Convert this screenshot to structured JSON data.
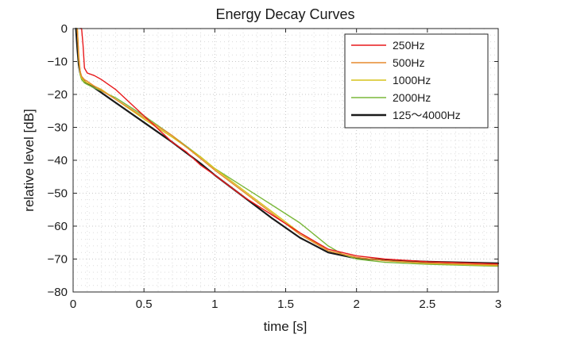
{
  "chart_data": {
    "type": "line",
    "title": "Energy Decay Curves",
    "xlabel": "time [s]",
    "ylabel": "relative level [dB]",
    "xlim": [
      0,
      3
    ],
    "ylim": [
      -80,
      0
    ],
    "xticks": [
      0,
      0.5,
      1,
      1.5,
      2,
      2.5,
      3
    ],
    "xtick_labels": [
      "0",
      "0.5",
      "1",
      "1.5",
      "2",
      "2.5",
      "3"
    ],
    "yticks": [
      0,
      -10,
      -20,
      -30,
      -40,
      -50,
      -60,
      -70,
      -80
    ],
    "ytick_labels": [
      "0",
      "−10",
      "−20",
      "−30",
      "−40",
      "−50",
      "−60",
      "−70",
      "−80"
    ],
    "grid": "major and minor dotted",
    "legend_position": "top-right",
    "series": [
      {
        "name": "250Hz",
        "color": "#e8191b",
        "x": [
          0.05,
          0.06,
          0.07,
          0.08,
          0.1,
          0.15,
          0.2,
          0.3,
          0.4,
          0.5,
          0.6,
          0.7,
          0.8,
          0.9,
          1.0,
          1.2,
          1.4,
          1.6,
          1.7,
          1.8,
          2.0,
          2.2,
          2.5,
          3.0
        ],
        "y": [
          0,
          0,
          -5,
          -12,
          -13.5,
          -14.3,
          -15.5,
          -18.5,
          -22.5,
          -26.5,
          -30.5,
          -34.5,
          -37.5,
          -41.5,
          -44.5,
          -51,
          -56.5,
          -62,
          -64.5,
          -67,
          -69,
          -70,
          -70.8,
          -71.5
        ]
      },
      {
        "name": "500Hz",
        "color": "#e68a2e",
        "x": [
          0.03,
          0.04,
          0.05,
          0.06,
          0.08,
          0.1,
          0.15,
          0.2,
          0.3,
          0.5,
          0.7,
          0.9,
          1.0,
          1.2,
          1.4,
          1.6,
          1.8,
          2.0,
          2.2,
          2.5,
          3.0
        ],
        "y": [
          0,
          -8,
          -13,
          -14.5,
          -15.5,
          -16,
          -17.5,
          -18.8,
          -21.5,
          -27,
          -32.5,
          -39.5,
          -43,
          -49.5,
          -56,
          -62.5,
          -67.5,
          -69.5,
          -70.5,
          -71.2,
          -71.8
        ]
      },
      {
        "name": "1000Hz",
        "color": "#d6c31c",
        "x": [
          0.03,
          0.04,
          0.05,
          0.06,
          0.08,
          0.1,
          0.15,
          0.2,
          0.3,
          0.5,
          0.7,
          0.9,
          1.0,
          1.2,
          1.4,
          1.6,
          1.8,
          2.0,
          2.2,
          2.5,
          3.0
        ],
        "y": [
          0,
          -9,
          -13.5,
          -15,
          -16,
          -16.5,
          -17.5,
          -18.5,
          -21.5,
          -27.5,
          -33,
          -39,
          -42.5,
          -49,
          -55.5,
          -62,
          -67.5,
          -69.5,
          -70.5,
          -71.3,
          -72
        ]
      },
      {
        "name": "2000Hz",
        "color": "#7ab83a",
        "x": [
          0.03,
          0.04,
          0.05,
          0.06,
          0.08,
          0.1,
          0.15,
          0.2,
          0.3,
          0.5,
          0.7,
          0.9,
          1.0,
          1.2,
          1.4,
          1.6,
          1.7,
          1.8,
          1.9,
          2.0,
          2.2,
          2.5,
          3.0
        ],
        "y": [
          0,
          -9,
          -14,
          -15.5,
          -16.5,
          -17,
          -18,
          -19,
          -21,
          -26.5,
          -32.5,
          -39,
          -42.5,
          -48,
          -53.5,
          -59,
          -62.5,
          -66,
          -68.5,
          -70,
          -71,
          -71.6,
          -72.2
        ]
      },
      {
        "name": "125〜4000Hz",
        "color": "#1a1a1a",
        "x": [
          0.02,
          0.03,
          0.04,
          0.05,
          0.06,
          0.08,
          0.1,
          0.15,
          0.2,
          0.3,
          0.5,
          0.7,
          0.9,
          1.0,
          1.2,
          1.4,
          1.6,
          1.8,
          2.0,
          2.2,
          2.5,
          3.0
        ],
        "y": [
          0,
          -6,
          -11,
          -13.5,
          -15,
          -16,
          -16.8,
          -18,
          -19.5,
          -22.5,
          -28.5,
          -34.5,
          -41,
          -44.5,
          -51,
          -57.5,
          -63.5,
          -68,
          -69.8,
          -70.3,
          -70.8,
          -71.3
        ]
      }
    ]
  }
}
